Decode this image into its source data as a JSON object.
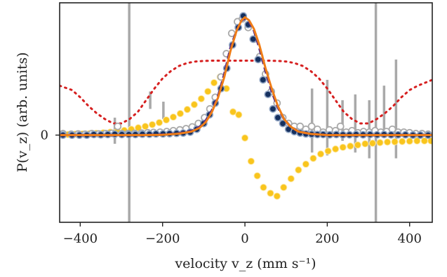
{
  "chart_data": {
    "type": "scatter",
    "title": "",
    "xlabel": "velocity v_z (mm s⁻¹)",
    "ylabel": "P(v_z) (arb. units)",
    "xlim": [
      -450,
      455
    ],
    "ylim": [
      -0.3,
      0.455
    ],
    "x_ticks": [
      -400,
      -200,
      0,
      200,
      400
    ],
    "x_tick_labels": [
      "−400",
      "−200",
      "0",
      "200",
      "400"
    ],
    "y_ticks": [
      0
    ],
    "y_tick_labels": [
      "0"
    ],
    "grid": false,
    "legend": "none",
    "colors": {
      "hollow_points": "#aaaaaa",
      "dark_points": "#15305f",
      "yellow_points": "#f9c51d",
      "orange_line": "#f07d17",
      "purple_dashed": "#5a2d82",
      "red_dotted": "#d62020",
      "error_bars": "#a9a9a9",
      "vertical_lines": "#a9a9a9"
    },
    "vertical_lines": [
      -281,
      318
    ],
    "series": [
      {
        "kind": "error_bars",
        "points": [
          {
            "x": -316,
            "y": 0.015,
            "err": 0.045
          },
          {
            "x": -230,
            "y": 0.12,
            "err": 0.03
          },
          {
            "x": -198,
            "y": 0.085,
            "err": 0.03
          },
          {
            "x": 163,
            "y": 0.05,
            "err": 0.11
          },
          {
            "x": 200,
            "y": 0.06,
            "err": 0.13
          },
          {
            "x": 237,
            "y": 0.05,
            "err": 0.07
          },
          {
            "x": 268,
            "y": 0.04,
            "err": 0.1
          },
          {
            "x": 302,
            "y": 0.02,
            "err": 0.1
          },
          {
            "x": 338,
            "y": 0.09,
            "err": 0.08
          },
          {
            "x": 367,
            "y": 0.09,
            "err": 0.17
          }
        ]
      },
      {
        "kind": "hollow_points",
        "points": [
          [
            -442,
            0.005
          ],
          [
            -422,
            0.003
          ],
          [
            -405,
            0.004
          ],
          [
            -388,
            0.003
          ],
          [
            -372,
            0.005
          ],
          [
            -355,
            0.004
          ],
          [
            -338,
            0.005
          ],
          [
            -323,
            0.006
          ],
          [
            -309,
            0.03
          ],
          [
            -299,
            0.005
          ],
          [
            -284,
            0.005
          ],
          [
            -268,
            0.006
          ],
          [
            -251,
            0.007
          ],
          [
            -236,
            0.008
          ],
          [
            -222,
            0.009
          ],
          [
            -206,
            0.01
          ],
          [
            -190,
            0.012
          ],
          [
            -174,
            0.015
          ],
          [
            -158,
            0.018
          ],
          [
            -143,
            0.022
          ],
          [
            -128,
            0.028
          ],
          [
            -113,
            0.04
          ],
          [
            -98,
            0.06
          ],
          [
            -85,
            0.09
          ],
          [
            -72,
            0.13
          ],
          [
            -58,
            0.2
          ],
          [
            -45,
            0.28
          ],
          [
            -32,
            0.35
          ],
          [
            -18,
            0.39
          ],
          [
            -6,
            0.4
          ],
          [
            8,
            0.37
          ],
          [
            22,
            0.33
          ],
          [
            36,
            0.27
          ],
          [
            50,
            0.21
          ],
          [
            64,
            0.15
          ],
          [
            78,
            0.11
          ],
          [
            92,
            0.06
          ],
          [
            106,
            0.04
          ],
          [
            120,
            0.03
          ],
          [
            134,
            0.03
          ],
          [
            148,
            0.02
          ],
          [
            162,
            0.03
          ],
          [
            176,
            0.02
          ],
          [
            190,
            0.01
          ],
          [
            205,
            0.018
          ],
          [
            220,
            0.015
          ],
          [
            232,
            0.03
          ],
          [
            246,
            0.01
          ],
          [
            260,
            0.015
          ],
          [
            274,
            0.008
          ],
          [
            288,
            0.012
          ],
          [
            302,
            0.01
          ],
          [
            316,
            0.015
          ],
          [
            330,
            0.01
          ],
          [
            344,
            0.012
          ],
          [
            358,
            0.02
          ],
          [
            372,
            0.01
          ],
          [
            386,
            0.01
          ],
          [
            400,
            0.008
          ],
          [
            415,
            0.005
          ],
          [
            430,
            0.005
          ],
          [
            445,
            0.003
          ]
        ]
      },
      {
        "kind": "dark_points",
        "points": [
          [
            -442,
            0.0
          ],
          [
            -420,
            0.0
          ],
          [
            -402,
            0.0
          ],
          [
            -384,
            0.0
          ],
          [
            -367,
            0.002
          ],
          [
            -350,
            0.001
          ],
          [
            -333,
            0.002
          ],
          [
            -316,
            0.003
          ],
          [
            -299,
            0.002
          ],
          [
            -282,
            0.002
          ],
          [
            -266,
            0.002
          ],
          [
            -249,
            0.003
          ],
          [
            -232,
            0.003
          ],
          [
            -216,
            0.004
          ],
          [
            -199,
            0.004
          ],
          [
            -183,
            0.005
          ],
          [
            -166,
            0.006
          ],
          [
            -150,
            0.007
          ],
          [
            -133,
            0.01
          ],
          [
            -117,
            0.02
          ],
          [
            -100,
            0.04
          ],
          [
            -86,
            0.07
          ],
          [
            -72,
            0.11
          ],
          [
            -58,
            0.16
          ],
          [
            -44,
            0.23
          ],
          [
            -30,
            0.31
          ],
          [
            -16,
            0.37
          ],
          [
            -4,
            0.41
          ],
          [
            8,
            0.38
          ],
          [
            20,
            0.33
          ],
          [
            32,
            0.26
          ],
          [
            44,
            0.19
          ],
          [
            56,
            0.14
          ],
          [
            68,
            0.09
          ],
          [
            80,
            0.06
          ],
          [
            92,
            0.04
          ],
          [
            106,
            0.02
          ],
          [
            120,
            0.012
          ],
          [
            134,
            0.007
          ],
          [
            148,
            0.004
          ],
          [
            162,
            0.003
          ],
          [
            176,
            0.002
          ],
          [
            190,
            0.002
          ],
          [
            206,
            0.001
          ],
          [
            222,
            0.002
          ],
          [
            238,
            0.001
          ],
          [
            254,
            0.001
          ],
          [
            270,
            0.002
          ],
          [
            287,
            0.001
          ],
          [
            304,
            0.002
          ],
          [
            321,
            0.001
          ],
          [
            338,
            0.002
          ],
          [
            355,
            0.001
          ],
          [
            372,
            0.001
          ],
          [
            390,
            0.001
          ],
          [
            408,
            0.0
          ],
          [
            426,
            0.0
          ],
          [
            445,
            0.0
          ]
        ]
      },
      {
        "kind": "yellow_points",
        "points": [
          [
            -430,
            0.002
          ],
          [
            -412,
            0.003
          ],
          [
            -395,
            0.004
          ],
          [
            -378,
            0.005
          ],
          [
            -361,
            0.006
          ],
          [
            -344,
            0.008
          ],
          [
            -327,
            0.01
          ],
          [
            -310,
            0.013
          ],
          [
            -293,
            0.016
          ],
          [
            -276,
            0.02
          ],
          [
            -259,
            0.025
          ],
          [
            -242,
            0.03
          ],
          [
            -225,
            0.036
          ],
          [
            -208,
            0.043
          ],
          [
            -191,
            0.052
          ],
          [
            -174,
            0.062
          ],
          [
            -157,
            0.074
          ],
          [
            -140,
            0.088
          ],
          [
            -123,
            0.105
          ],
          [
            -106,
            0.125
          ],
          [
            -90,
            0.15
          ],
          [
            -75,
            0.18
          ],
          [
            -60,
            0.2
          ],
          [
            -45,
            0.16
          ],
          [
            -29,
            0.08
          ],
          [
            -15,
            0.07
          ],
          [
            0,
            -0.01
          ],
          [
            15,
            -0.09
          ],
          [
            30,
            -0.14
          ],
          [
            45,
            -0.18
          ],
          [
            62,
            -0.2
          ],
          [
            78,
            -0.21
          ],
          [
            94,
            -0.18
          ],
          [
            112,
            -0.15
          ],
          [
            130,
            -0.12
          ],
          [
            148,
            -0.1
          ],
          [
            166,
            -0.08
          ],
          [
            184,
            -0.065
          ],
          [
            202,
            -0.055
          ],
          [
            220,
            -0.048
          ],
          [
            238,
            -0.042
          ],
          [
            256,
            -0.038
          ],
          [
            274,
            -0.034
          ],
          [
            292,
            -0.03
          ],
          [
            310,
            -0.028
          ],
          [
            328,
            -0.026
          ],
          [
            346,
            -0.024
          ],
          [
            364,
            -0.023
          ],
          [
            382,
            -0.022
          ],
          [
            400,
            -0.021
          ],
          [
            418,
            -0.02
          ],
          [
            436,
            -0.02
          ],
          [
            452,
            -0.02
          ]
        ]
      },
      {
        "kind": "red_dotted_curve",
        "points": [
          [
            -450,
            0.17
          ],
          [
            -420,
            0.155
          ],
          [
            -400,
            0.13
          ],
          [
            -380,
            0.1
          ],
          [
            -360,
            0.075
          ],
          [
            -340,
            0.055
          ],
          [
            -320,
            0.04
          ],
          [
            -300,
            0.04
          ],
          [
            -280,
            0.055
          ],
          [
            -260,
            0.08
          ],
          [
            -240,
            0.12
          ],
          [
            -220,
            0.16
          ],
          [
            -200,
            0.195
          ],
          [
            -180,
            0.22
          ],
          [
            -160,
            0.238
          ],
          [
            -140,
            0.248
          ],
          [
            -120,
            0.253
          ],
          [
            -100,
            0.255
          ],
          [
            -80,
            0.256
          ],
          [
            -60,
            0.256
          ],
          [
            -40,
            0.256
          ],
          [
            -20,
            0.256
          ],
          [
            0,
            0.256
          ],
          [
            20,
            0.256
          ],
          [
            40,
            0.256
          ],
          [
            60,
            0.256
          ],
          [
            80,
            0.255
          ],
          [
            100,
            0.253
          ],
          [
            120,
            0.248
          ],
          [
            140,
            0.238
          ],
          [
            160,
            0.22
          ],
          [
            180,
            0.195
          ],
          [
            200,
            0.16
          ],
          [
            220,
            0.12
          ],
          [
            240,
            0.08
          ],
          [
            260,
            0.055
          ],
          [
            280,
            0.04
          ],
          [
            300,
            0.04
          ],
          [
            320,
            0.055
          ],
          [
            340,
            0.075
          ],
          [
            360,
            0.1
          ],
          [
            380,
            0.13
          ],
          [
            400,
            0.155
          ],
          [
            420,
            0.17
          ],
          [
            455,
            0.19
          ]
        ]
      },
      {
        "kind": "orange_curve",
        "points": [
          [
            -450,
            0.0
          ],
          [
            -250,
            0.0
          ],
          [
            -200,
            0.001
          ],
          [
            -160,
            0.005
          ],
          [
            -130,
            0.012
          ],
          [
            -110,
            0.025
          ],
          [
            -95,
            0.045
          ],
          [
            -80,
            0.08
          ],
          [
            -65,
            0.13
          ],
          [
            -50,
            0.2
          ],
          [
            -35,
            0.29
          ],
          [
            -20,
            0.36
          ],
          [
            -8,
            0.395
          ],
          [
            0,
            0.405
          ],
          [
            10,
            0.395
          ],
          [
            22,
            0.365
          ],
          [
            35,
            0.31
          ],
          [
            50,
            0.23
          ],
          [
            65,
            0.16
          ],
          [
            80,
            0.1
          ],
          [
            95,
            0.055
          ],
          [
            110,
            0.03
          ],
          [
            130,
            0.012
          ],
          [
            160,
            0.004
          ],
          [
            200,
            0.0
          ],
          [
            455,
            0.0
          ]
        ]
      },
      {
        "kind": "purple_dashed_curve",
        "points": [
          [
            -450,
            0.0
          ],
          [
            -250,
            0.0
          ],
          [
            -190,
            0.002
          ],
          [
            -160,
            0.006
          ],
          [
            -130,
            0.014
          ],
          [
            -110,
            0.028
          ],
          [
            -95,
            0.05
          ],
          [
            -80,
            0.085
          ],
          [
            -65,
            0.135
          ],
          [
            -50,
            0.21
          ],
          [
            -35,
            0.3
          ],
          [
            -20,
            0.36
          ],
          [
            -8,
            0.395
          ],
          [
            0,
            0.4
          ],
          [
            10,
            0.39
          ],
          [
            22,
            0.36
          ],
          [
            35,
            0.3
          ],
          [
            50,
            0.22
          ],
          [
            65,
            0.15
          ],
          [
            80,
            0.095
          ],
          [
            95,
            0.055
          ],
          [
            110,
            0.03
          ],
          [
            130,
            0.012
          ],
          [
            160,
            0.004
          ],
          [
            200,
            0.0
          ],
          [
            455,
            0.0
          ]
        ]
      }
    ]
  }
}
